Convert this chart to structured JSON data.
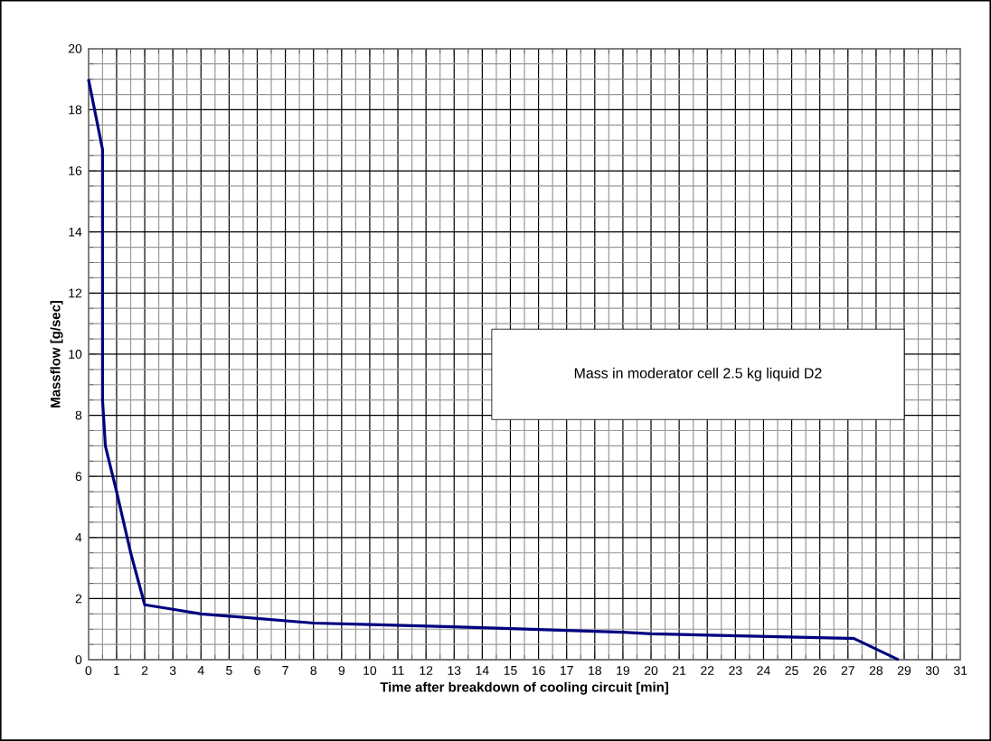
{
  "chart_data": {
    "type": "line",
    "xlabel": "Time after breakdown of cooling circuit [min]",
    "ylabel": "Massflow [g/sec]",
    "annotations": [
      "Mass in moderator cell  2.5 kg liquid D2"
    ],
    "x": [
      0,
      0.5,
      0.5,
      0.6,
      1,
      1.5,
      2,
      3,
      4,
      6,
      8,
      10,
      14,
      19,
      20,
      27,
      27.2,
      28.8
    ],
    "series": [
      {
        "color": "#000080",
        "values": [
          19,
          16.7,
          8.5,
          7,
          5.5,
          3.5,
          1.8,
          1.65,
          1.5,
          1.35,
          1.2,
          1.15,
          1.05,
          0.9,
          0.85,
          0.7,
          0.7,
          0
        ]
      }
    ],
    "xlim": [
      0,
      31
    ],
    "ylim": [
      0,
      20
    ],
    "xticks": [
      0,
      1,
      2,
      3,
      4,
      5,
      6,
      7,
      8,
      9,
      10,
      11,
      12,
      13,
      14,
      15,
      16,
      17,
      18,
      19,
      20,
      21,
      22,
      23,
      24,
      25,
      26,
      27,
      28,
      29,
      30,
      31
    ],
    "yticks": [
      0,
      2,
      4,
      6,
      8,
      10,
      12,
      14,
      16,
      18,
      20
    ],
    "grid": true,
    "marker": "none",
    "line_style": "solid"
  }
}
